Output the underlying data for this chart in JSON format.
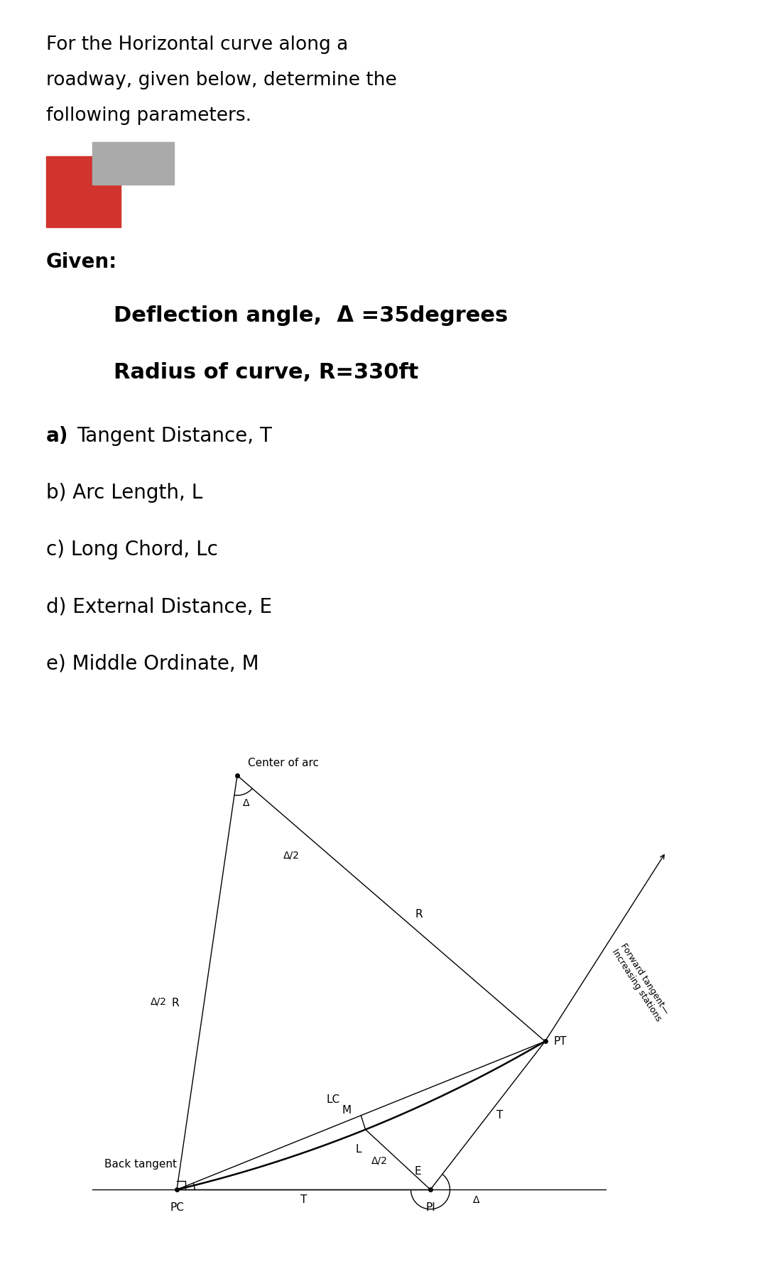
{
  "title_line1": "For the Horizontal curve along a",
  "title_line2": "roadway, given below, determine the",
  "title_line3": "following parameters.",
  "given_label": "Given:",
  "deflection_label": "Deflection angle,  Δ =35degrees",
  "radius_label": "Radius of curve, R=330ft",
  "items": [
    "b) Arc Length, L",
    "c) Long Chord, Lc",
    "d) External Distance, E",
    "e) Middle Ordinate, M"
  ],
  "bg_color": "#ffffff",
  "text_color": "#000000",
  "red_rect_color": "#d0342c",
  "gray_rect_color": "#aaaaaa",
  "forward_tangent_label": "Forward tangent—\nIncreasing stations"
}
